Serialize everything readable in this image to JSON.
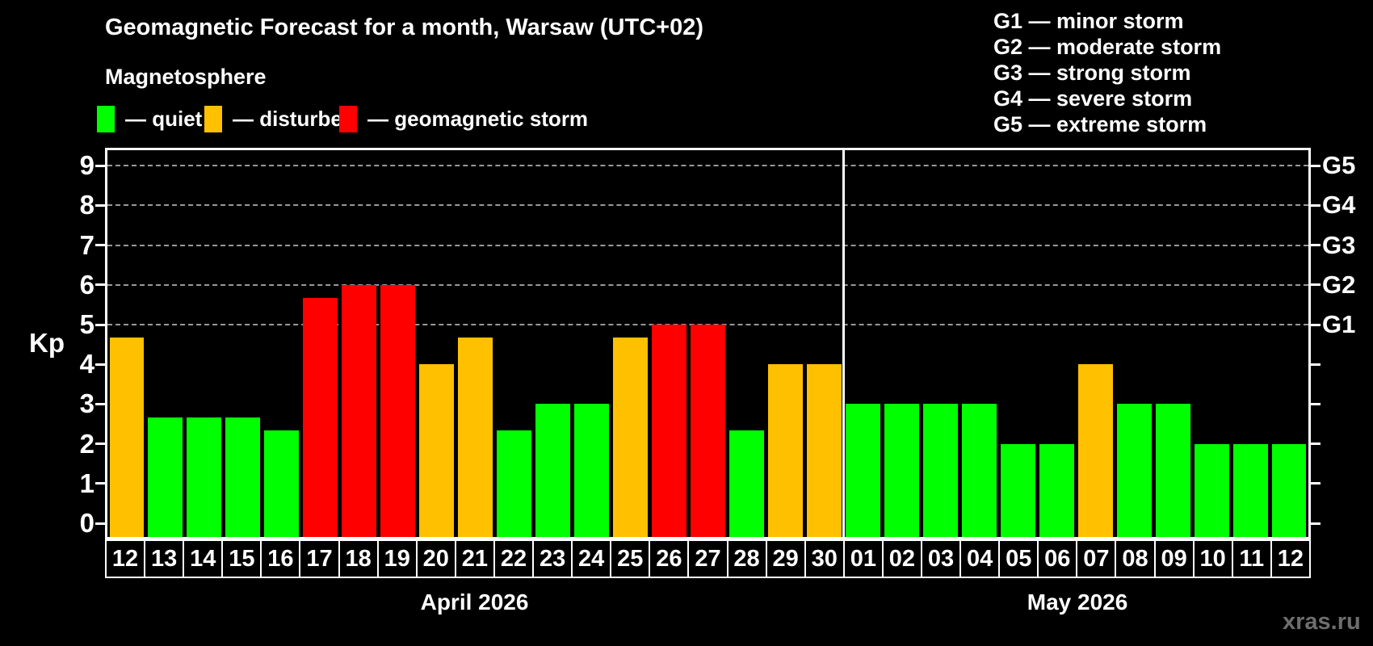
{
  "title": "Geomagnetic Forecast for a month, Warsaw (UTC+02)",
  "subtitle": "Magnetosphere",
  "legend": {
    "items": [
      {
        "key": "quiet",
        "label": "— quiet",
        "color": "#00ff00"
      },
      {
        "key": "disturbed",
        "label": "— disturbed",
        "color": "#ffc000"
      },
      {
        "key": "storm",
        "label": "— geomagnetic storm",
        "color": "#ff0000"
      }
    ]
  },
  "g_scale_legend": [
    "G1 — minor storm",
    "G2 — moderate storm",
    "G3 — strong storm",
    "G4 — severe storm",
    "G5 — extreme storm"
  ],
  "watermark": "xras.ru",
  "chart_data": {
    "type": "bar",
    "title": "Geomagnetic Forecast for a month, Warsaw (UTC+02)",
    "xlabel": "",
    "ylabel": "Kp",
    "ylim": [
      0,
      9
    ],
    "yticks": [
      0,
      1,
      2,
      3,
      4,
      5,
      6,
      7,
      8,
      9
    ],
    "gridlines_at": [
      5,
      6,
      7,
      8,
      9
    ],
    "grid": "horizontal dashed at Kp 5-9 only",
    "legend_position": "top-left",
    "right_axis_labels": [
      {
        "kp": 5,
        "label": "G1"
      },
      {
        "kp": 6,
        "label": "G2"
      },
      {
        "kp": 7,
        "label": "G3"
      },
      {
        "kp": 8,
        "label": "G4"
      },
      {
        "kp": 9,
        "label": "G5"
      }
    ],
    "months": [
      {
        "label": "April 2026",
        "days": [
          {
            "day": "12",
            "kp": 4.67,
            "status": "disturbed"
          },
          {
            "day": "13",
            "kp": 2.67,
            "status": "quiet"
          },
          {
            "day": "14",
            "kp": 2.67,
            "status": "quiet"
          },
          {
            "day": "15",
            "kp": 2.67,
            "status": "quiet"
          },
          {
            "day": "16",
            "kp": 2.33,
            "status": "quiet"
          },
          {
            "day": "17",
            "kp": 5.67,
            "status": "storm"
          },
          {
            "day": "18",
            "kp": 6.0,
            "status": "storm"
          },
          {
            "day": "19",
            "kp": 6.0,
            "status": "storm"
          },
          {
            "day": "20",
            "kp": 4.0,
            "status": "disturbed"
          },
          {
            "day": "21",
            "kp": 4.67,
            "status": "disturbed"
          },
          {
            "day": "22",
            "kp": 2.33,
            "status": "quiet"
          },
          {
            "day": "23",
            "kp": 3.0,
            "status": "quiet"
          },
          {
            "day": "24",
            "kp": 3.0,
            "status": "quiet"
          },
          {
            "day": "25",
            "kp": 4.67,
            "status": "disturbed"
          },
          {
            "day": "26",
            "kp": 5.0,
            "status": "storm"
          },
          {
            "day": "27",
            "kp": 5.0,
            "status": "storm"
          },
          {
            "day": "28",
            "kp": 2.33,
            "status": "quiet"
          },
          {
            "day": "29",
            "kp": 4.0,
            "status": "disturbed"
          },
          {
            "day": "30",
            "kp": 4.0,
            "status": "disturbed"
          }
        ]
      },
      {
        "label": "May 2026",
        "days": [
          {
            "day": "01",
            "kp": 3.0,
            "status": "quiet"
          },
          {
            "day": "02",
            "kp": 3.0,
            "status": "quiet"
          },
          {
            "day": "03",
            "kp": 3.0,
            "status": "quiet"
          },
          {
            "day": "04",
            "kp": 3.0,
            "status": "quiet"
          },
          {
            "day": "05",
            "kp": 2.0,
            "status": "quiet"
          },
          {
            "day": "06",
            "kp": 2.0,
            "status": "quiet"
          },
          {
            "day": "07",
            "kp": 4.0,
            "status": "disturbed"
          },
          {
            "day": "08",
            "kp": 3.0,
            "status": "quiet"
          },
          {
            "day": "09",
            "kp": 3.0,
            "status": "quiet"
          },
          {
            "day": "10",
            "kp": 2.0,
            "status": "quiet"
          },
          {
            "day": "11",
            "kp": 2.0,
            "status": "quiet"
          },
          {
            "day": "12",
            "kp": 2.0,
            "status": "quiet"
          }
        ]
      }
    ]
  }
}
